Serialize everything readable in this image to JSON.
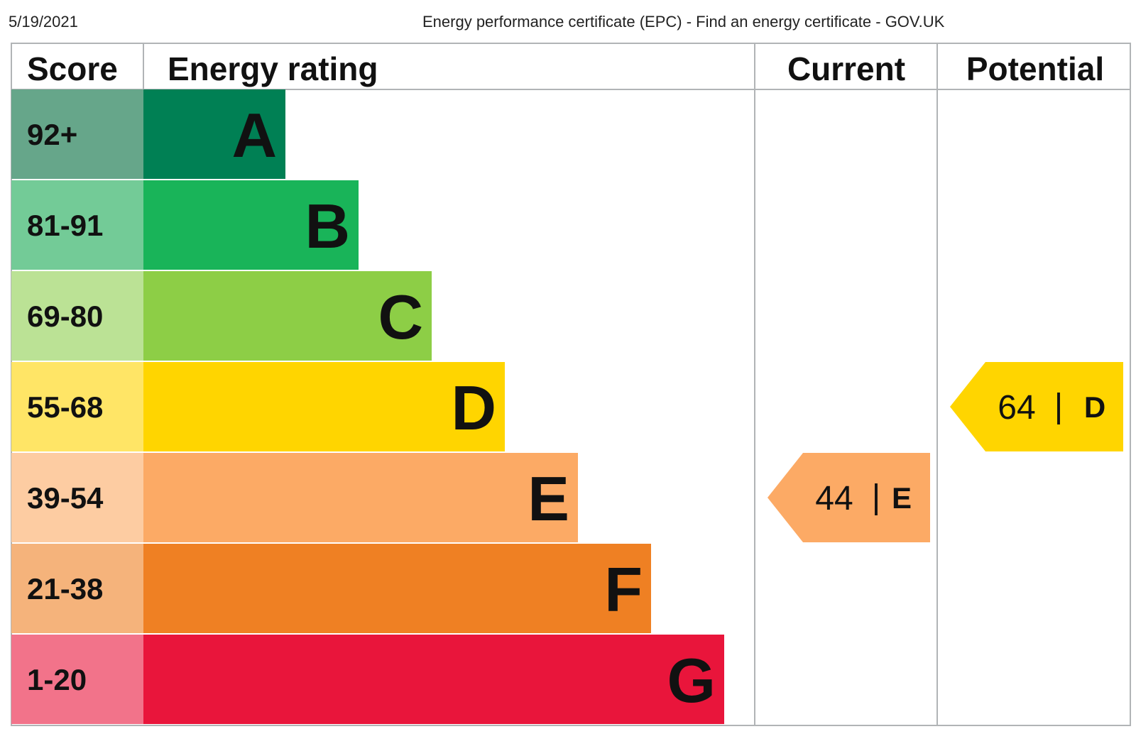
{
  "header": {
    "date": "5/19/2021",
    "title": "Energy performance certificate (EPC) - Find an energy certificate - GOV.UK"
  },
  "columns": {
    "score": "Score",
    "rating": "Energy rating",
    "current": "Current",
    "potential": "Potential"
  },
  "chart_data": {
    "type": "bar",
    "categories": [
      "A",
      "B",
      "C",
      "D",
      "E",
      "F",
      "G"
    ],
    "score_ranges": [
      "92+",
      "81-91",
      "69-80",
      "55-68",
      "39-54",
      "21-38",
      "1-20"
    ],
    "band_colors": [
      "#008054",
      "#19b459",
      "#8dce46",
      "#ffd500",
      "#fcaa65",
      "#ef8023",
      "#e9153b"
    ],
    "score_colors": [
      "#66a68a",
      "#73cb97",
      "#bbe295",
      "#ffe566",
      "#fdcca2",
      "#f5b37b",
      "#f2738a"
    ],
    "current": {
      "value": 44,
      "separator": "|",
      "band": "E",
      "color": "#fcaa65"
    },
    "potential": {
      "value": 64,
      "separator": "|",
      "band": "D",
      "color": "#ffd500"
    }
  }
}
